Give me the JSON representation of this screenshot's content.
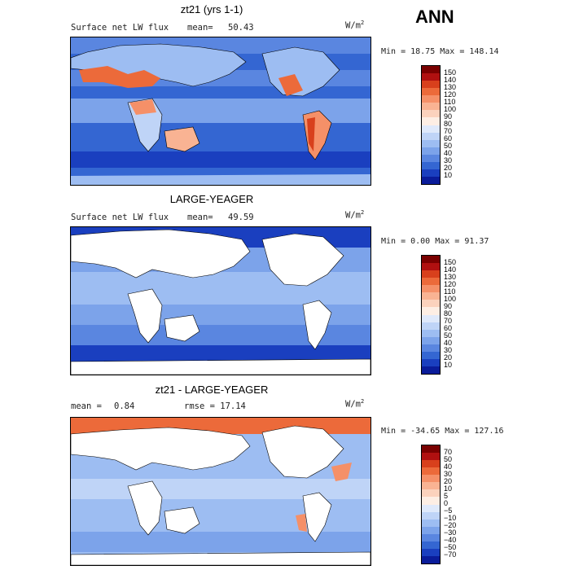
{
  "season": "ANN",
  "units_main": "W/m",
  "units_sup": "2",
  "panels": [
    {
      "title": "zt21 (yrs 1-1)",
      "variable": "Surface net LW flux",
      "stat_label": "mean=",
      "stat_value": "50.43",
      "range": "Min =  18.75 Max = 148.14",
      "colorbar": [
        "150",
        "140",
        "130",
        "120",
        "110",
        "100",
        "90",
        "80",
        "70",
        "60",
        "50",
        "40",
        "30",
        "20",
        "10"
      ],
      "land_fill": "model"
    },
    {
      "title": "LARGE-YEAGER",
      "variable": "Surface net LW flux",
      "stat_label": "mean=",
      "stat_value": "49.59",
      "range": "Min =   0.00 Max =  91.37",
      "colorbar": [
        "150",
        "140",
        "130",
        "120",
        "110",
        "100",
        "90",
        "80",
        "70",
        "60",
        "50",
        "40",
        "30",
        "20",
        "10"
      ],
      "land_fill": "white"
    },
    {
      "title": "zt21 - LARGE-YEAGER",
      "variable": "mean =",
      "stat_label": "0.84",
      "stat_value": "rmse =   17.14",
      "range": "Min = -34.65 Max = 127.16",
      "colorbar": [
        "70",
        "50",
        "40",
        "30",
        "20",
        "10",
        "5",
        "0",
        "−5",
        "−10",
        "−20",
        "−30",
        "−40",
        "−50",
        "−70"
      ],
      "land_fill": "white"
    }
  ],
  "colors": {
    "scale": [
      "#7a0000",
      "#b01010",
      "#d8401c",
      "#ec6a3a",
      "#f59068",
      "#f9b393",
      "#fbd2bd",
      "#fdeee4",
      "#dfe9fb",
      "#bfd4f7",
      "#9dbdf2",
      "#7ca3ea",
      "#5a86e0",
      "#3466d2",
      "#1a3fbf",
      "#0a1c9a"
    ]
  }
}
